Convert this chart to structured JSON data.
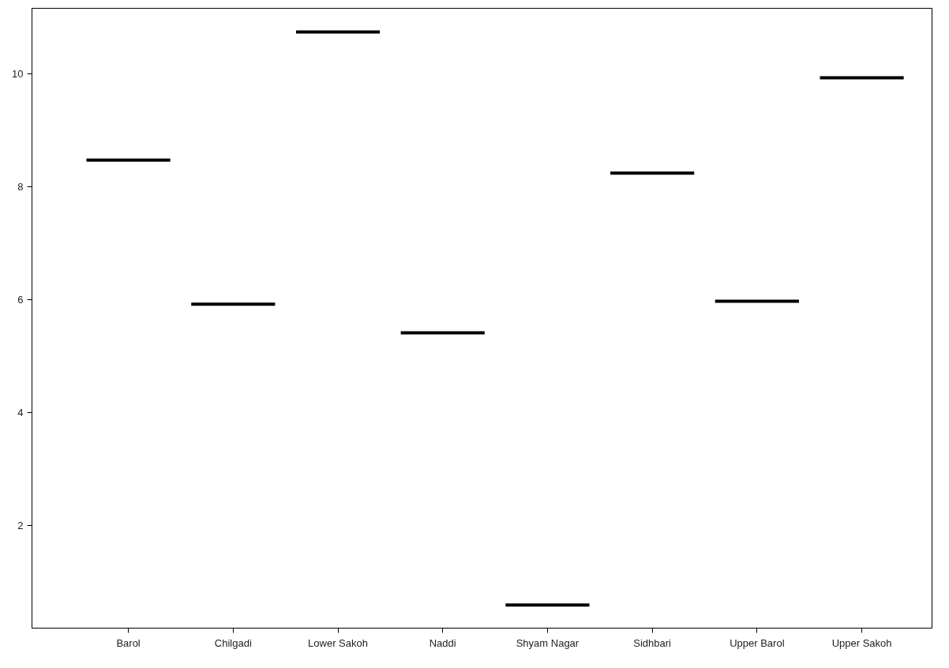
{
  "chart_data": {
    "type": "box",
    "categories": [
      "Barol",
      "Chilgadi",
      "Lower Sakoh",
      "Naddi",
      "Shyam Nagar",
      "Sidhbari",
      "Upper Barol",
      "Upper Sakoh"
    ],
    "boxes": [
      {
        "low": 8.47,
        "q1": 8.47,
        "median": 8.47,
        "q3": 8.47,
        "high": 8.47
      },
      {
        "low": 5.92,
        "q1": 5.92,
        "median": 5.92,
        "q3": 5.92,
        "high": 5.92
      },
      {
        "low": 10.74,
        "q1": 10.74,
        "median": 10.74,
        "q3": 10.74,
        "high": 10.74
      },
      {
        "low": 5.41,
        "q1": 5.41,
        "median": 5.41,
        "q3": 5.41,
        "high": 5.41
      },
      {
        "low": 0.59,
        "q1": 0.59,
        "median": 0.59,
        "q3": 0.59,
        "high": 0.59
      },
      {
        "low": 8.24,
        "q1": 8.24,
        "median": 8.24,
        "q3": 8.24,
        "high": 8.24
      },
      {
        "low": 5.97,
        "q1": 5.97,
        "median": 5.97,
        "q3": 5.97,
        "high": 5.97
      },
      {
        "low": 9.93,
        "q1": 9.93,
        "median": 9.93,
        "q3": 9.93,
        "high": 9.93
      }
    ],
    "color": "#000000",
    "ylim": [
      0.18,
      11.16
    ],
    "yticks": [
      2,
      4,
      6,
      8,
      10
    ],
    "grid": false
  }
}
